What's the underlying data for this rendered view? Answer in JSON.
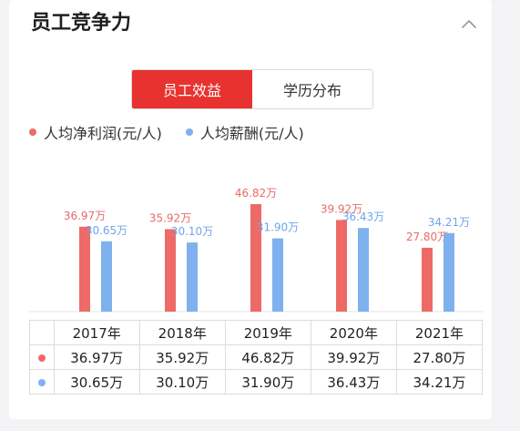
{
  "header": {
    "title": "员工竞争力"
  },
  "tabs": [
    {
      "label": "员工效益",
      "active": true
    },
    {
      "label": "学历分布",
      "active": false
    }
  ],
  "colors": {
    "series1": "#ee6a67",
    "series2": "#7fb1ef",
    "accent": "#e8322f"
  },
  "chart_data": {
    "type": "bar",
    "categories": [
      "2017年",
      "2018年",
      "2019年",
      "2020年",
      "2021年"
    ],
    "series": [
      {
        "name": "人均净利润(元/人)",
        "values": [
          36.97,
          35.92,
          46.82,
          39.92,
          27.8
        ],
        "labels": [
          "36.97万",
          "35.92万",
          "46.82万",
          "39.92万",
          "27.80万"
        ]
      },
      {
        "name": "人均薪酬(元/人)",
        "values": [
          30.65,
          30.1,
          31.9,
          36.43,
          34.21
        ],
        "labels": [
          "30.65万",
          "30.10万",
          "31.90万",
          "36.43万",
          "34.21万"
        ]
      }
    ],
    "ylim": [
      0,
      50
    ],
    "legend_placement": "top-left",
    "grid": false
  },
  "icons": {
    "collapse": "chevron-up-icon"
  }
}
